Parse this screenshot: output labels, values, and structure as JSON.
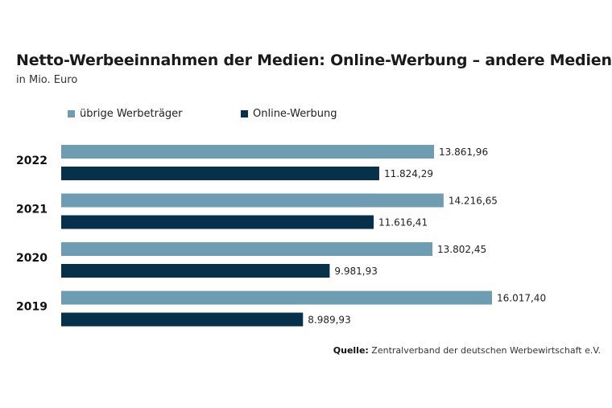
{
  "header": {
    "title": "Netto-Werbeeinnahmen der Medien: Online-Werbung – andere Medien",
    "subtitle": "in Mio. Euro"
  },
  "legend": [
    {
      "label": "übrige Werbeträger",
      "color": "#6e9cb3"
    },
    {
      "label": "Online-Werbung",
      "color": "#07304a"
    }
  ],
  "source": {
    "prefix": "Quelle:",
    "text": " Zentralverband der deutschen Werbewirtschaft e.V."
  },
  "chart_data": {
    "type": "bar",
    "orientation": "horizontal",
    "categories": [
      "2022",
      "2021",
      "2020",
      "2019"
    ],
    "series": [
      {
        "name": "übrige Werbeträger",
        "values": [
          13861.96,
          14216.65,
          13802.45,
          16017.4
        ],
        "labels": [
          "13.861,96",
          "14.216,65",
          "13.802,45",
          "16.017,40"
        ],
        "color": "#6e9cb3"
      },
      {
        "name": "Online-Werbung",
        "values": [
          11824.29,
          11616.41,
          9981.93,
          8989.93
        ],
        "labels": [
          "11.824,29",
          "11.616,41",
          "9.981,93",
          "8.989,93"
        ],
        "color": "#07304a"
      }
    ],
    "xlim": [
      0,
      16017.4
    ],
    "grid": false,
    "legend_position": "top-left"
  }
}
